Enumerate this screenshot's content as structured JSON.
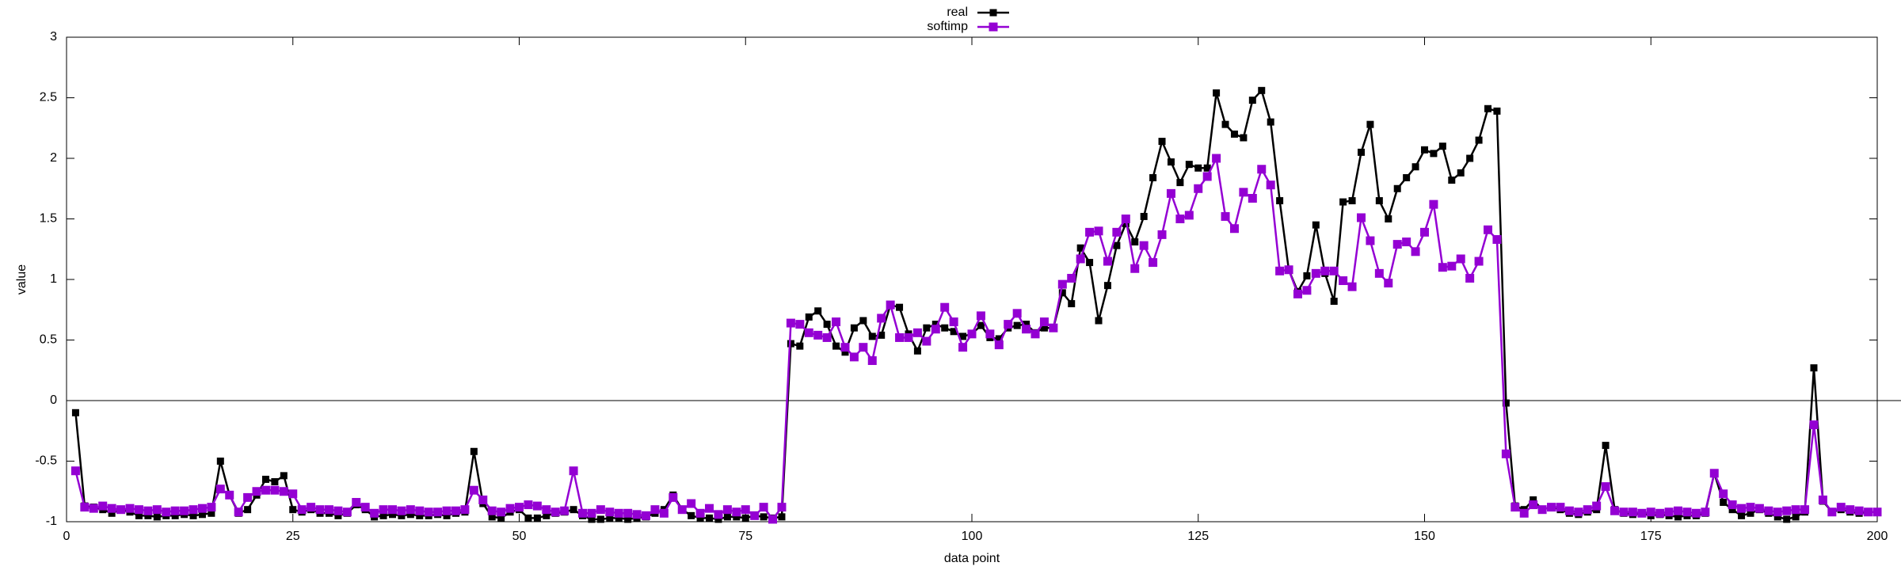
{
  "chart_data": {
    "type": "line",
    "xlabel": "data point",
    "ylabel": "value",
    "x": [
      1,
      2,
      3,
      4,
      5,
      6,
      7,
      8,
      9,
      10,
      11,
      12,
      13,
      14,
      15,
      16,
      17,
      18,
      19,
      20,
      21,
      22,
      23,
      24,
      25,
      26,
      27,
      28,
      29,
      30,
      31,
      32,
      33,
      34,
      35,
      36,
      37,
      38,
      39,
      40,
      41,
      42,
      43,
      44,
      45,
      46,
      47,
      48,
      49,
      50,
      51,
      52,
      53,
      54,
      55,
      56,
      57,
      58,
      59,
      60,
      61,
      62,
      63,
      64,
      65,
      66,
      67,
      68,
      69,
      70,
      71,
      72,
      73,
      74,
      75,
      76,
      77,
      78,
      79,
      80,
      81,
      82,
      83,
      84,
      85,
      86,
      87,
      88,
      89,
      90,
      91,
      92,
      93,
      94,
      95,
      96,
      97,
      98,
      99,
      100,
      101,
      102,
      103,
      104,
      105,
      106,
      107,
      108,
      109,
      110,
      111,
      112,
      113,
      114,
      115,
      116,
      117,
      118,
      119,
      120,
      121,
      122,
      123,
      124,
      125,
      126,
      127,
      128,
      129,
      130,
      131,
      132,
      133,
      134,
      135,
      136,
      137,
      138,
      139,
      140,
      141,
      142,
      143,
      144,
      145,
      146,
      147,
      148,
      149,
      150,
      151,
      152,
      153,
      154,
      155,
      156,
      157,
      158,
      159,
      160,
      161,
      162,
      163,
      164,
      165,
      166,
      167,
      168,
      169,
      170,
      171,
      172,
      173,
      174,
      175,
      176,
      177,
      178,
      179,
      180,
      181,
      182,
      183,
      184,
      185,
      186,
      187,
      188,
      189,
      190,
      191,
      192,
      193,
      194,
      195,
      196,
      197,
      198,
      199,
      200
    ],
    "series": [
      {
        "name": "real",
        "color": "#000000",
        "values": [
          -0.1,
          -0.87,
          -0.88,
          -0.9,
          -0.93,
          -0.9,
          -0.92,
          -0.95,
          -0.95,
          -0.96,
          -0.95,
          -0.95,
          -0.94,
          -0.95,
          -0.94,
          -0.93,
          -0.5,
          -0.78,
          -0.93,
          -0.9,
          -0.78,
          -0.65,
          -0.67,
          -0.62,
          -0.9,
          -0.92,
          -0.9,
          -0.93,
          -0.93,
          -0.95,
          -0.93,
          -0.86,
          -0.9,
          -0.96,
          -0.95,
          -0.94,
          -0.95,
          -0.94,
          -0.95,
          -0.95,
          -0.94,
          -0.95,
          -0.93,
          -0.92,
          -0.42,
          -0.85,
          -0.96,
          -0.97,
          -0.92,
          -0.9,
          -0.97,
          -0.97,
          -0.95,
          -0.93,
          -0.92,
          -0.9,
          -0.95,
          -0.98,
          -0.98,
          -0.97,
          -0.97,
          -0.98,
          -0.97,
          -0.96,
          -0.93,
          -0.9,
          -0.78,
          -0.9,
          -0.95,
          -0.97,
          -0.97,
          -0.98,
          -0.96,
          -0.96,
          -0.97,
          -0.95,
          -0.96,
          -0.97,
          -0.96,
          0.47,
          0.45,
          0.69,
          0.74,
          0.63,
          0.45,
          0.4,
          0.6,
          0.66,
          0.53,
          0.54,
          0.79,
          0.77,
          0.55,
          0.41,
          0.6,
          0.63,
          0.6,
          0.57,
          0.53,
          0.55,
          0.62,
          0.52,
          0.51,
          0.6,
          0.62,
          0.63,
          0.56,
          0.6,
          0.6,
          0.89,
          0.8,
          1.26,
          1.14,
          0.66,
          0.95,
          1.28,
          1.46,
          1.31,
          1.52,
          1.84,
          2.14,
          1.97,
          1.8,
          1.95,
          1.92,
          1.92,
          2.54,
          2.28,
          2.2,
          2.17,
          2.48,
          2.56,
          2.3,
          1.65,
          1.08,
          0.9,
          1.03,
          1.45,
          1.05,
          0.82,
          1.64,
          1.65,
          2.05,
          2.28,
          1.65,
          1.5,
          1.75,
          1.84,
          1.93,
          2.07,
          2.04,
          2.1,
          1.82,
          1.88,
          2.0,
          2.15,
          2.41,
          2.39,
          -0.02,
          -0.87,
          -0.9,
          -0.82,
          -0.9,
          -0.88,
          -0.9,
          -0.93,
          -0.94,
          -0.92,
          -0.9,
          -0.37,
          -0.9,
          -0.93,
          -0.94,
          -0.93,
          -0.95,
          -0.94,
          -0.95,
          -0.96,
          -0.95,
          -0.95,
          -0.93,
          -0.6,
          -0.84,
          -0.9,
          -0.95,
          -0.93,
          -0.9,
          -0.93,
          -0.96,
          -0.98,
          -0.96,
          -0.92,
          0.27,
          -0.83,
          -0.92,
          -0.9,
          -0.92,
          -0.93,
          -0.92,
          -0.92
        ]
      },
      {
        "name": "softimp",
        "color": "#9400d3",
        "values": [
          -0.58,
          -0.88,
          -0.89,
          -0.87,
          -0.89,
          -0.9,
          -0.89,
          -0.9,
          -0.91,
          -0.9,
          -0.92,
          -0.91,
          -0.91,
          -0.9,
          -0.89,
          -0.88,
          -0.73,
          -0.78,
          -0.92,
          -0.8,
          -0.75,
          -0.74,
          -0.74,
          -0.75,
          -0.77,
          -0.9,
          -0.88,
          -0.9,
          -0.9,
          -0.91,
          -0.92,
          -0.84,
          -0.88,
          -0.93,
          -0.9,
          -0.9,
          -0.91,
          -0.9,
          -0.91,
          -0.92,
          -0.92,
          -0.91,
          -0.91,
          -0.9,
          -0.74,
          -0.82,
          -0.91,
          -0.92,
          -0.89,
          -0.88,
          -0.86,
          -0.87,
          -0.9,
          -0.92,
          -0.91,
          -0.58,
          -0.93,
          -0.93,
          -0.9,
          -0.92,
          -0.93,
          -0.93,
          -0.94,
          -0.95,
          -0.9,
          -0.93,
          -0.8,
          -0.9,
          -0.85,
          -0.93,
          -0.89,
          -0.94,
          -0.9,
          -0.92,
          -0.9,
          -0.95,
          -0.88,
          -0.98,
          -0.88,
          0.64,
          0.63,
          0.56,
          0.54,
          0.52,
          0.65,
          0.44,
          0.36,
          0.44,
          0.33,
          0.68,
          0.79,
          0.52,
          0.52,
          0.56,
          0.49,
          0.59,
          0.77,
          0.65,
          0.44,
          0.55,
          0.7,
          0.55,
          0.46,
          0.63,
          0.72,
          0.59,
          0.55,
          0.65,
          0.6,
          0.96,
          1.01,
          1.17,
          1.39,
          1.4,
          1.15,
          1.39,
          1.5,
          1.09,
          1.28,
          1.14,
          1.37,
          1.71,
          1.5,
          1.53,
          1.75,
          1.85,
          2.0,
          1.52,
          1.42,
          1.72,
          1.67,
          1.91,
          1.78,
          1.07,
          1.08,
          0.88,
          0.91,
          1.05,
          1.07,
          1.07,
          0.99,
          0.94,
          1.51,
          1.32,
          1.05,
          0.97,
          1.29,
          1.31,
          1.23,
          1.39,
          1.62,
          1.1,
          1.11,
          1.17,
          1.01,
          1.15,
          1.41,
          1.33,
          -0.44,
          -0.88,
          -0.93,
          -0.86,
          -0.9,
          -0.88,
          -0.88,
          -0.91,
          -0.92,
          -0.9,
          -0.87,
          -0.71,
          -0.91,
          -0.92,
          -0.92,
          -0.93,
          -0.92,
          -0.93,
          -0.92,
          -0.91,
          -0.92,
          -0.93,
          -0.92,
          -0.6,
          -0.77,
          -0.86,
          -0.89,
          -0.88,
          -0.89,
          -0.91,
          -0.92,
          -0.91,
          -0.9,
          -0.9,
          -0.2,
          -0.82,
          -0.92,
          -0.88,
          -0.9,
          -0.91,
          -0.92,
          -0.92
        ]
      }
    ],
    "xlim": [
      0,
      200
    ],
    "xticks": [
      0,
      25,
      50,
      75,
      100,
      125,
      150,
      175,
      200
    ],
    "ylim": [
      -1,
      3
    ],
    "yticks": [
      -1,
      -0.5,
      0,
      0.5,
      1,
      1.5,
      2,
      2.5,
      3
    ],
    "zero_axis": true,
    "legend": "top"
  }
}
